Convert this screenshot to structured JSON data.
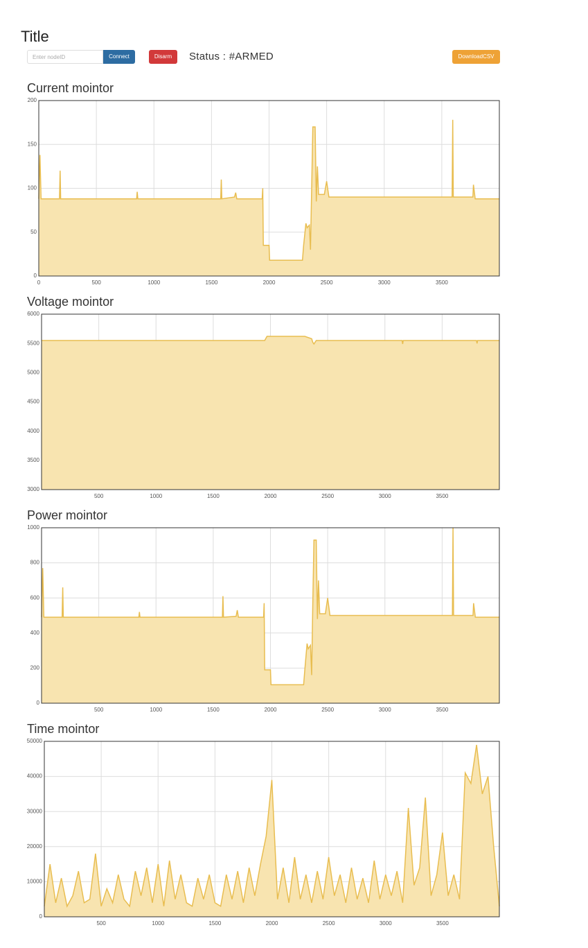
{
  "title": "Title",
  "controls": {
    "input_placeholder": "Enter nodeID",
    "connect": "Connect",
    "disarm": "Disarm",
    "status": "Status : #ARMED",
    "download": "DownloadCSV"
  },
  "chart_data": [
    {
      "type": "area",
      "title": "Current mointor",
      "color": "#e8bd50",
      "fill": "#f8e4b0",
      "grid": true,
      "x": [
        0,
        10,
        20,
        180,
        185,
        190,
        500,
        850,
        855,
        860,
        1580,
        1585,
        1590,
        1700,
        1710,
        1720,
        1940,
        1945,
        1950,
        2000,
        2005,
        2290,
        2300,
        2320,
        2330,
        2350,
        2360,
        2370,
        2380,
        2400,
        2410,
        2420,
        2430,
        2480,
        2500,
        2520,
        3000,
        3590,
        3595,
        3600,
        3770,
        3775,
        3790,
        4000
      ],
      "values": [
        88,
        138,
        88,
        88,
        120,
        88,
        88,
        88,
        96,
        88,
        88,
        110,
        88,
        90,
        95,
        88,
        88,
        100,
        35,
        35,
        18,
        18,
        35,
        60,
        55,
        58,
        30,
        100,
        170,
        170,
        85,
        125,
        93,
        93,
        108,
        90,
        90,
        90,
        178,
        90,
        90,
        104,
        88,
        88
      ],
      "xlim": [
        0,
        4000
      ],
      "xticks": [
        0,
        500,
        1000,
        1500,
        2000,
        2500,
        3000,
        3500
      ],
      "ylim": [
        0,
        200
      ],
      "yticks": [
        0,
        50,
        100,
        150,
        200
      ]
    },
    {
      "type": "area",
      "title": "Voltage mointor",
      "color": "#e8bd50",
      "fill": "#f8e4b0",
      "grid": true,
      "x": [
        0,
        1950,
        1970,
        2300,
        2360,
        2370,
        2380,
        2400,
        2420,
        3000,
        3150,
        3155,
        3160,
        3800,
        3805,
        3810,
        4000
      ],
      "values": [
        5550,
        5550,
        5620,
        5620,
        5580,
        5520,
        5490,
        5550,
        5550,
        5550,
        5550,
        5490,
        5550,
        5550,
        5500,
        5550,
        5550
      ],
      "xlim": [
        0,
        4000
      ],
      "xticks": [
        500,
        1000,
        1500,
        2000,
        2500,
        3000,
        3500
      ],
      "ylim": [
        3000,
        6000
      ],
      "yticks": [
        3000,
        3500,
        4000,
        4500,
        5000,
        5500,
        6000
      ]
    },
    {
      "type": "area",
      "title": "Power mointor",
      "color": "#e8bd50",
      "fill": "#f8e4b0",
      "grid": true,
      "x": [
        0,
        10,
        20,
        180,
        185,
        190,
        500,
        850,
        855,
        860,
        1580,
        1585,
        1590,
        1700,
        1710,
        1720,
        1940,
        1945,
        1950,
        2000,
        2005,
        2290,
        2300,
        2320,
        2330,
        2350,
        2360,
        2370,
        2380,
        2400,
        2410,
        2420,
        2430,
        2480,
        2500,
        2520,
        3000,
        3590,
        3595,
        3600,
        3770,
        3775,
        3790,
        4000
      ],
      "values": [
        490,
        770,
        490,
        490,
        660,
        490,
        490,
        490,
        520,
        490,
        490,
        610,
        490,
        495,
        530,
        490,
        490,
        570,
        190,
        190,
        105,
        105,
        190,
        340,
        310,
        330,
        160,
        560,
        930,
        930,
        480,
        700,
        510,
        510,
        600,
        500,
        500,
        500,
        1000,
        500,
        500,
        570,
        490,
        490
      ],
      "xlim": [
        0,
        4000
      ],
      "xticks": [
        500,
        1000,
        1500,
        2000,
        2500,
        3000,
        3500
      ],
      "ylim": [
        0,
        1000
      ],
      "yticks": [
        0,
        200,
        400,
        600,
        800,
        1000
      ]
    },
    {
      "type": "area",
      "title": "Time mointor",
      "color": "#e8bd50",
      "fill": "#f8e4b0",
      "grid": true,
      "x": [
        0,
        50,
        100,
        150,
        200,
        250,
        300,
        350,
        400,
        450,
        500,
        550,
        600,
        650,
        700,
        750,
        800,
        850,
        900,
        950,
        1000,
        1050,
        1100,
        1150,
        1200,
        1250,
        1300,
        1350,
        1400,
        1450,
        1500,
        1550,
        1600,
        1650,
        1700,
        1750,
        1800,
        1850,
        1900,
        1950,
        2000,
        2050,
        2100,
        2150,
        2200,
        2250,
        2300,
        2350,
        2400,
        2450,
        2500,
        2550,
        2600,
        2650,
        2700,
        2750,
        2800,
        2850,
        2900,
        2950,
        3000,
        3050,
        3100,
        3150,
        3200,
        3250,
        3300,
        3350,
        3400,
        3450,
        3500,
        3550,
        3600,
        3650,
        3700,
        3750,
        3800,
        3850,
        3900,
        3950,
        4000
      ],
      "values": [
        3000,
        15000,
        4000,
        11000,
        3000,
        6000,
        13000,
        4000,
        5000,
        18000,
        3000,
        8000,
        4000,
        12000,
        5000,
        3000,
        13000,
        6000,
        14000,
        4000,
        15000,
        3000,
        16000,
        5000,
        12000,
        4000,
        3000,
        11000,
        5000,
        12000,
        4000,
        3000,
        12000,
        5000,
        13000,
        4000,
        14000,
        6000,
        15000,
        23000,
        39000,
        5000,
        14000,
        4000,
        17000,
        5000,
        12000,
        4000,
        13000,
        5000,
        17000,
        6000,
        12000,
        4000,
        14000,
        5000,
        11000,
        4000,
        16000,
        5000,
        12000,
        6000,
        13000,
        4000,
        31000,
        9000,
        14000,
        34000,
        6000,
        12000,
        24000,
        6000,
        12000,
        5000,
        41000,
        38000,
        49000,
        35000,
        40000,
        20000,
        3000
      ],
      "xlim": [
        0,
        4000
      ],
      "xticks": [
        500,
        1000,
        1500,
        2000,
        2500,
        3000,
        3500
      ],
      "ylim": [
        0,
        50000
      ],
      "yticks": [
        0,
        10000,
        20000,
        30000,
        40000,
        50000
      ]
    }
  ]
}
